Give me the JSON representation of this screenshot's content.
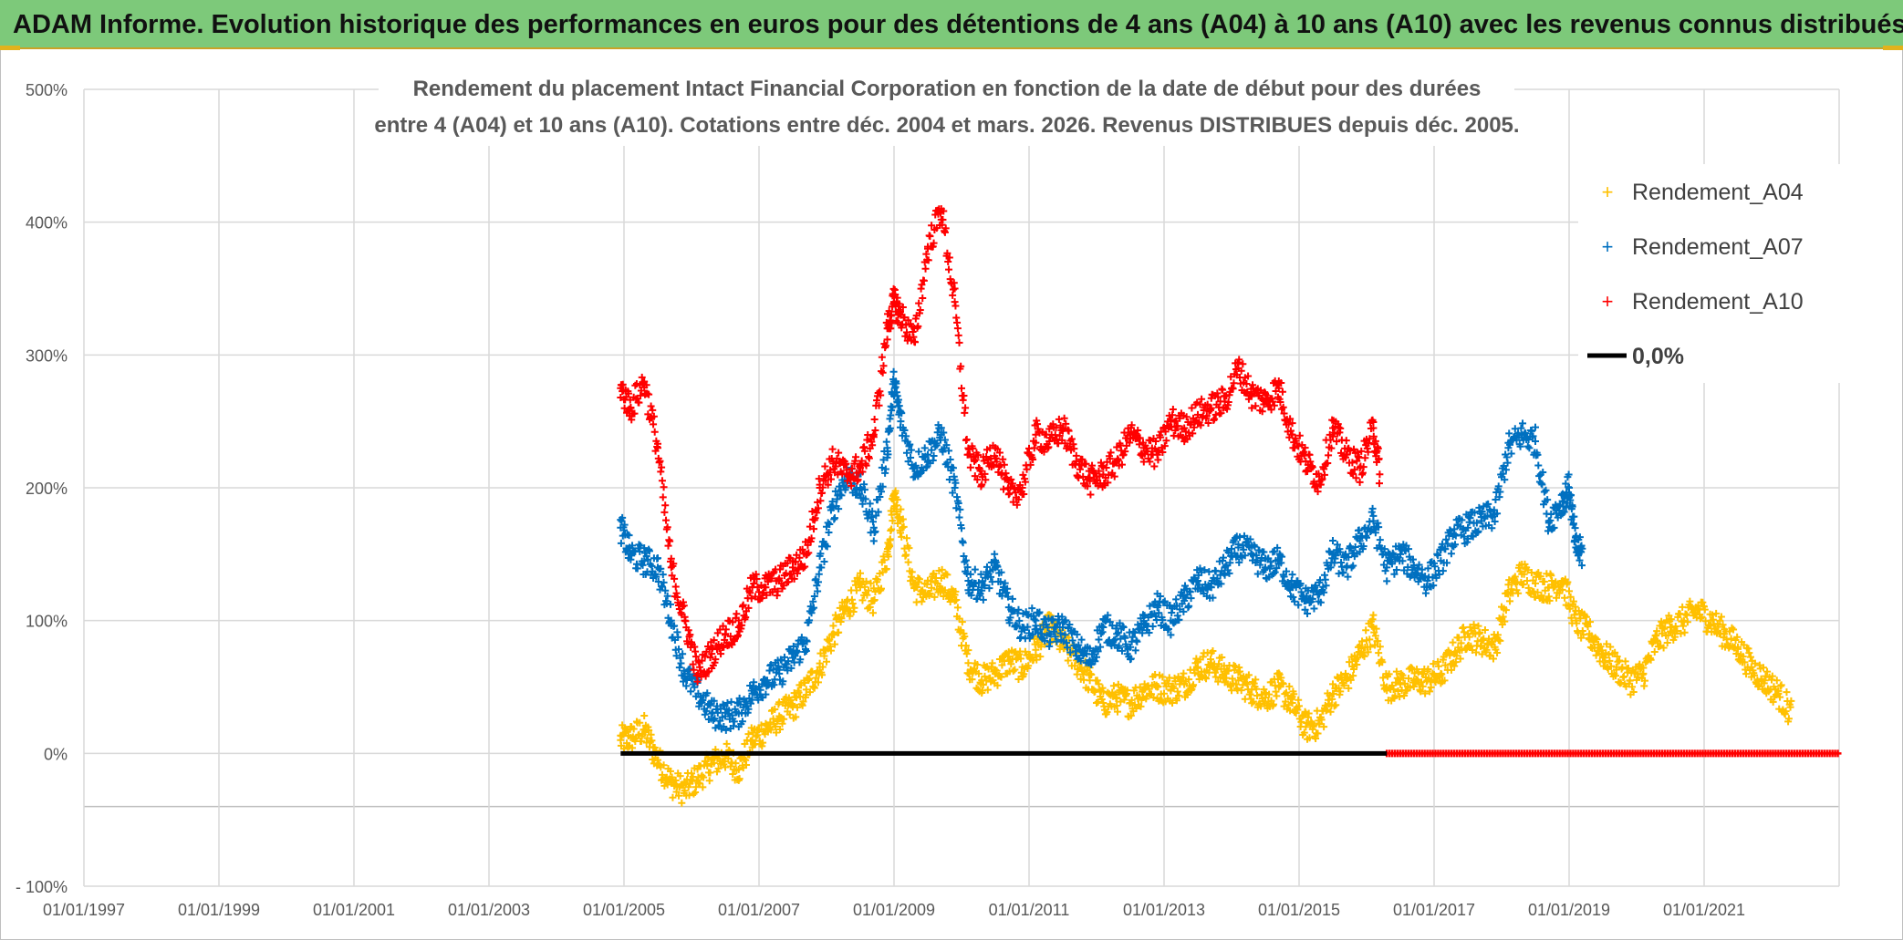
{
  "banner": {
    "title": "ADAM Informe. Evolution historique des performances en euros pour des détentions de 4 ans (A04) à 10 ans (A10) avec les revenus connus distribués"
  },
  "colors": {
    "banner_bg": "#7dc97a",
    "a04": "#FFC000",
    "a07": "#0070C0",
    "a10": "#FF0000",
    "zero": "#000000"
  },
  "chart_data": {
    "type": "scatter",
    "title_line1": "Rendement du placement Intact Financial Corporation en fonction de la date de début pour des durées",
    "title_line2": "entre 4 (A04) et 10 ans (A10). Cotations entre déc. 2004 et mars. 2026. Revenus DISTRIBUES depuis déc. 2005.",
    "xlim": [
      1997.0,
      2023.0
    ],
    "ylim": [
      -100,
      500
    ],
    "x_tick_labels": [
      "01/01/1997",
      "01/01/1999",
      "01/01/2001",
      "01/01/2003",
      "01/01/2005",
      "01/01/2007",
      "01/01/2009",
      "01/01/2011",
      "01/01/2013",
      "01/01/2015",
      "01/01/2017",
      "01/01/2019",
      "01/01/2021"
    ],
    "x_tick_values": [
      1997,
      1999,
      2001,
      2003,
      2005,
      2007,
      2009,
      2011,
      2013,
      2015,
      2017,
      2019,
      2021
    ],
    "y_tick_labels": [
      "- 100%",
      "0%",
      "100%",
      "200%",
      "300%",
      "400%",
      "500%"
    ],
    "y_tick_values": [
      -100,
      0,
      100,
      200,
      300,
      400,
      500
    ],
    "extra_gridline_y": -40,
    "legend_position": "top-right",
    "series": [
      {
        "name": "Rendement_A04",
        "marker": "+",
        "points": [
          [
            2004.95,
            10
          ],
          [
            2005.1,
            12
          ],
          [
            2005.3,
            18
          ],
          [
            2005.5,
            -5
          ],
          [
            2005.7,
            -22
          ],
          [
            2005.9,
            -28
          ],
          [
            2006.1,
            -18
          ],
          [
            2006.3,
            -8
          ],
          [
            2006.5,
            -2
          ],
          [
            2006.7,
            -12
          ],
          [
            2006.9,
            10
          ],
          [
            2007.1,
            18
          ],
          [
            2007.3,
            28
          ],
          [
            2007.5,
            35
          ],
          [
            2007.7,
            48
          ],
          [
            2007.9,
            65
          ],
          [
            2008.1,
            90
          ],
          [
            2008.3,
            110
          ],
          [
            2008.5,
            125
          ],
          [
            2008.7,
            115
          ],
          [
            2008.9,
            150
          ],
          [
            2009.0,
            195
          ],
          [
            2009.1,
            175
          ],
          [
            2009.3,
            125
          ],
          [
            2009.5,
            120
          ],
          [
            2009.7,
            132
          ],
          [
            2009.9,
            115
          ],
          [
            2010.1,
            68
          ],
          [
            2010.3,
            55
          ],
          [
            2010.5,
            60
          ],
          [
            2010.7,
            70
          ],
          [
            2010.9,
            65
          ],
          [
            2011.1,
            78
          ],
          [
            2011.3,
            95
          ],
          [
            2011.5,
            82
          ],
          [
            2011.7,
            70
          ],
          [
            2011.9,
            55
          ],
          [
            2012.1,
            38
          ],
          [
            2012.3,
            42
          ],
          [
            2012.5,
            38
          ],
          [
            2012.7,
            48
          ],
          [
            2012.9,
            50
          ],
          [
            2013.1,
            48
          ],
          [
            2013.3,
            52
          ],
          [
            2013.5,
            65
          ],
          [
            2013.7,
            68
          ],
          [
            2013.9,
            60
          ],
          [
            2014.1,
            55
          ],
          [
            2014.3,
            48
          ],
          [
            2014.5,
            42
          ],
          [
            2014.7,
            50
          ],
          [
            2014.9,
            38
          ],
          [
            2015.1,
            20
          ],
          [
            2015.3,
            22
          ],
          [
            2015.5,
            45
          ],
          [
            2015.7,
            55
          ],
          [
            2015.9,
            75
          ],
          [
            2016.1,
            95
          ],
          [
            2016.3,
            50
          ],
          [
            2016.5,
            52
          ],
          [
            2016.7,
            55
          ],
          [
            2016.9,
            55
          ],
          [
            2017.1,
            60
          ],
          [
            2017.3,
            75
          ],
          [
            2017.5,
            90
          ],
          [
            2017.7,
            85
          ],
          [
            2017.9,
            80
          ],
          [
            2018.1,
            120
          ],
          [
            2018.3,
            135
          ],
          [
            2018.5,
            128
          ],
          [
            2018.7,
            125
          ],
          [
            2018.9,
            130
          ],
          [
            2019.1,
            100
          ],
          [
            2019.3,
            90
          ],
          [
            2019.5,
            75
          ],
          [
            2019.7,
            65
          ],
          [
            2019.9,
            55
          ],
          [
            2020.1,
            60
          ],
          [
            2020.3,
            85
          ],
          [
            2020.5,
            95
          ],
          [
            2020.7,
            100
          ],
          [
            2020.9,
            108
          ],
          [
            2021.1,
            100
          ],
          [
            2021.3,
            90
          ],
          [
            2021.5,
            80
          ],
          [
            2021.7,
            65
          ],
          [
            2021.9,
            55
          ],
          [
            2022.1,
            45
          ],
          [
            2022.3,
            30
          ]
        ]
      },
      {
        "name": "Rendement_A07",
        "marker": "+",
        "points": [
          [
            2004.95,
            170
          ],
          [
            2005.1,
            150
          ],
          [
            2005.3,
            145
          ],
          [
            2005.5,
            140
          ],
          [
            2005.7,
            100
          ],
          [
            2005.9,
            60
          ],
          [
            2006.1,
            45
          ],
          [
            2006.3,
            30
          ],
          [
            2006.5,
            28
          ],
          [
            2006.7,
            30
          ],
          [
            2006.9,
            45
          ],
          [
            2007.1,
            55
          ],
          [
            2007.3,
            60
          ],
          [
            2007.5,
            72
          ],
          [
            2007.7,
            85
          ],
          [
            2007.9,
            140
          ],
          [
            2008.1,
            185
          ],
          [
            2008.3,
            210
          ],
          [
            2008.5,
            200
          ],
          [
            2008.7,
            170
          ],
          [
            2008.9,
            230
          ],
          [
            2009.0,
            280
          ],
          [
            2009.1,
            250
          ],
          [
            2009.3,
            215
          ],
          [
            2009.5,
            225
          ],
          [
            2009.7,
            240
          ],
          [
            2009.9,
            200
          ],
          [
            2010.1,
            130
          ],
          [
            2010.3,
            125
          ],
          [
            2010.5,
            140
          ],
          [
            2010.7,
            110
          ],
          [
            2010.9,
            95
          ],
          [
            2011.1,
            100
          ],
          [
            2011.3,
            90
          ],
          [
            2011.5,
            95
          ],
          [
            2011.7,
            80
          ],
          [
            2011.9,
            70
          ],
          [
            2012.1,
            95
          ],
          [
            2012.3,
            90
          ],
          [
            2012.5,
            80
          ],
          [
            2012.7,
            95
          ],
          [
            2012.9,
            110
          ],
          [
            2013.1,
            100
          ],
          [
            2013.3,
            115
          ],
          [
            2013.5,
            130
          ],
          [
            2013.7,
            125
          ],
          [
            2013.9,
            140
          ],
          [
            2014.1,
            155
          ],
          [
            2014.3,
            150
          ],
          [
            2014.5,
            140
          ],
          [
            2014.7,
            145
          ],
          [
            2014.9,
            125
          ],
          [
            2015.1,
            115
          ],
          [
            2015.3,
            120
          ],
          [
            2015.5,
            150
          ],
          [
            2015.7,
            140
          ],
          [
            2015.9,
            160
          ],
          [
            2016.1,
            175
          ],
          [
            2016.3,
            140
          ],
          [
            2016.5,
            150
          ],
          [
            2016.7,
            140
          ],
          [
            2016.9,
            130
          ],
          [
            2017.1,
            145
          ],
          [
            2017.3,
            165
          ],
          [
            2017.5,
            170
          ],
          [
            2017.7,
            175
          ],
          [
            2017.9,
            180
          ],
          [
            2018.1,
            230
          ],
          [
            2018.3,
            240
          ],
          [
            2018.5,
            235
          ],
          [
            2018.7,
            175
          ],
          [
            2018.9,
            190
          ],
          [
            2019.0,
            200
          ],
          [
            2019.1,
            155
          ],
          [
            2019.2,
            150
          ]
        ]
      },
      {
        "name": "Rendement_A10",
        "marker": "+",
        "points": [
          [
            2004.95,
            275
          ],
          [
            2005.1,
            260
          ],
          [
            2005.3,
            280
          ],
          [
            2005.5,
            230
          ],
          [
            2005.7,
            140
          ],
          [
            2005.9,
            100
          ],
          [
            2006.1,
            60
          ],
          [
            2006.3,
            75
          ],
          [
            2006.5,
            90
          ],
          [
            2006.7,
            95
          ],
          [
            2006.9,
            125
          ],
          [
            2007.1,
            125
          ],
          [
            2007.3,
            130
          ],
          [
            2007.5,
            140
          ],
          [
            2007.7,
            150
          ],
          [
            2007.9,
            200
          ],
          [
            2008.1,
            220
          ],
          [
            2008.3,
            210
          ],
          [
            2008.5,
            215
          ],
          [
            2008.7,
            240
          ],
          [
            2008.9,
            320
          ],
          [
            2009.0,
            340
          ],
          [
            2009.1,
            330
          ],
          [
            2009.3,
            310
          ],
          [
            2009.5,
            380
          ],
          [
            2009.7,
            410
          ],
          [
            2009.9,
            340
          ],
          [
            2010.1,
            225
          ],
          [
            2010.3,
            210
          ],
          [
            2010.5,
            230
          ],
          [
            2010.7,
            195
          ],
          [
            2010.9,
            200
          ],
          [
            2011.1,
            240
          ],
          [
            2011.3,
            235
          ],
          [
            2011.5,
            245
          ],
          [
            2011.7,
            220
          ],
          [
            2011.9,
            205
          ],
          [
            2012.1,
            210
          ],
          [
            2012.3,
            220
          ],
          [
            2012.5,
            240
          ],
          [
            2012.7,
            230
          ],
          [
            2012.9,
            225
          ],
          [
            2013.1,
            250
          ],
          [
            2013.3,
            245
          ],
          [
            2013.5,
            255
          ],
          [
            2013.7,
            260
          ],
          [
            2013.9,
            265
          ],
          [
            2014.1,
            290
          ],
          [
            2014.3,
            270
          ],
          [
            2014.5,
            265
          ],
          [
            2014.7,
            275
          ],
          [
            2014.9,
            240
          ],
          [
            2015.1,
            220
          ],
          [
            2015.3,
            205
          ],
          [
            2015.5,
            245
          ],
          [
            2015.7,
            225
          ],
          [
            2015.9,
            215
          ],
          [
            2016.1,
            245
          ],
          [
            2016.2,
            210
          ]
        ]
      }
    ],
    "reference_line": {
      "name": "0,0%",
      "value": 0,
      "x_start": 2004.95,
      "x_end": 2016.3
    },
    "zero_markers": {
      "series": "Rendement_A10",
      "value": 0,
      "x_start": 2016.3,
      "x_end": 2023.0
    }
  }
}
